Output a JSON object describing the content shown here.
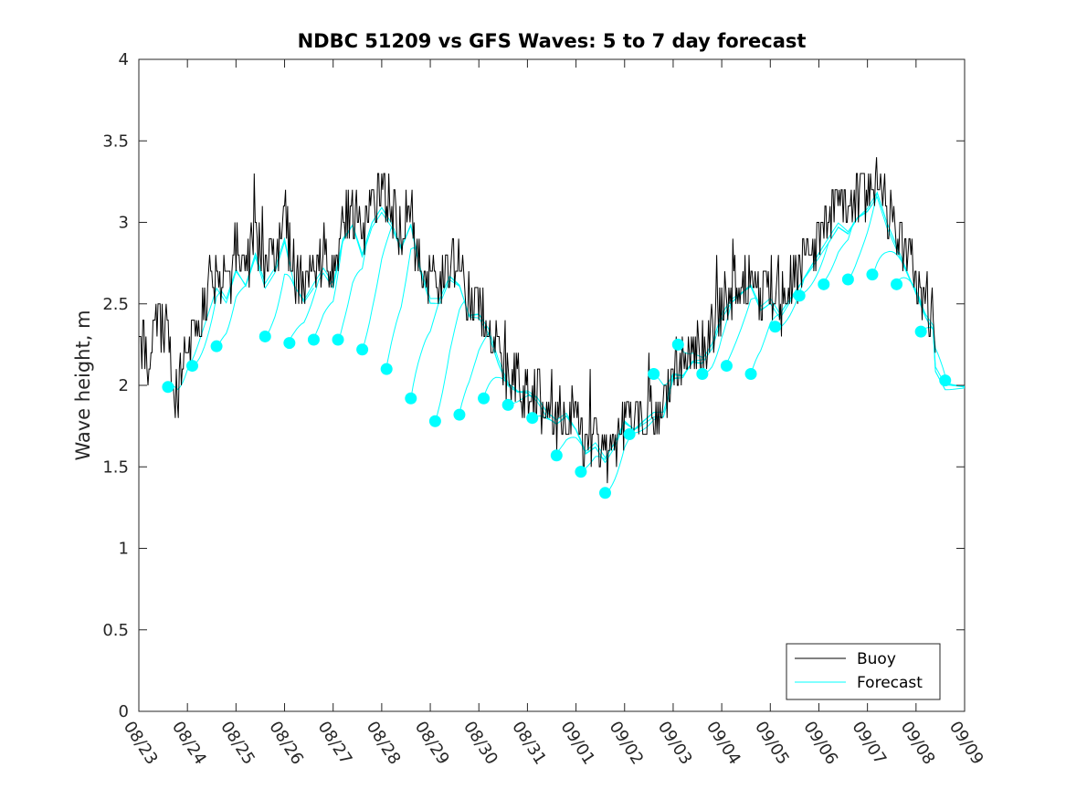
{
  "chart_data": {
    "type": "line",
    "title": "NDBC 51209 vs GFS Waves: 5 to 7 day forecast",
    "xlabel": "",
    "ylabel": "Wave height, m",
    "xlim": [
      0,
      17
    ],
    "ylim": [
      0,
      4
    ],
    "x_tick_labels": [
      "08/23",
      "08/24",
      "08/25",
      "08/26",
      "08/27",
      "08/28",
      "08/29",
      "08/30",
      "08/31",
      "09/01",
      "09/02",
      "09/03",
      "09/04",
      "09/05",
      "09/06",
      "09/07",
      "09/08",
      "09/09"
    ],
    "y_ticks": [
      0,
      0.5,
      1,
      1.5,
      2,
      2.5,
      3,
      3.5,
      4
    ],
    "y_tick_labels": [
      "0",
      "0.5",
      "1",
      "1.5",
      "2",
      "2.5",
      "3",
      "3.5",
      "4"
    ],
    "legend": {
      "position": "bottom-right",
      "entries": [
        "Buoy",
        "Forecast"
      ]
    },
    "colors": {
      "buoy": "#000000",
      "forecast": "#00ffff",
      "axes": "#262626"
    },
    "buoy_anchors": {
      "x": [
        0,
        0.2,
        0.4,
        0.6,
        0.7,
        0.8,
        1.0,
        1.2,
        1.4,
        1.6,
        1.8,
        2.0,
        2.2,
        2.4,
        2.6,
        2.8,
        3.0,
        3.2,
        3.4,
        3.6,
        3.8,
        4.0,
        4.2,
        4.4,
        4.6,
        4.8,
        5.0,
        5.2,
        5.4,
        5.6,
        5.8,
        6.0,
        6.2,
        6.4,
        6.6,
        6.8,
        7.0,
        7.2,
        7.4,
        7.6,
        7.8,
        8.0,
        8.2,
        8.4,
        8.6,
        8.8,
        9.0,
        9.2,
        9.4,
        9.6,
        9.8,
        10.0,
        10.2,
        10.4,
        10.6,
        10.8,
        11.0,
        11.2,
        11.4,
        11.6,
        11.8,
        12.0,
        12.2,
        12.4,
        12.6,
        12.8,
        13.0,
        13.2,
        13.4,
        13.6,
        13.8,
        14.0,
        14.2,
        14.4,
        14.6,
        14.8,
        15.0,
        15.2,
        15.4,
        15.6,
        15.8,
        16.0,
        16.2,
        16.4
      ],
      "y": [
        2.3,
        2.2,
        2.4,
        2.3,
        2.0,
        1.95,
        2.2,
        2.3,
        2.5,
        2.7,
        2.6,
        2.8,
        2.7,
        2.9,
        2.7,
        2.8,
        3.0,
        2.7,
        2.6,
        2.7,
        2.8,
        2.7,
        3.0,
        3.1,
        2.9,
        3.1,
        3.2,
        3.1,
        2.95,
        3.1,
        2.8,
        2.6,
        2.6,
        2.75,
        2.7,
        2.5,
        2.5,
        2.4,
        2.2,
        2.05,
        2.0,
        2.0,
        1.95,
        1.85,
        1.8,
        1.85,
        1.75,
        1.6,
        1.65,
        1.55,
        1.65,
        1.8,
        1.75,
        1.8,
        1.85,
        1.85,
        2.1,
        2.1,
        2.2,
        2.2,
        2.3,
        2.5,
        2.6,
        2.65,
        2.7,
        2.55,
        2.6,
        2.5,
        2.6,
        2.7,
        2.8,
        2.9,
        3.0,
        3.1,
        3.05,
        3.15,
        3.2,
        3.3,
        3.1,
        2.95,
        2.8,
        2.65,
        2.5,
        2.4
      ]
    },
    "forecast_markers": {
      "x": [
        0.6,
        1.1,
        1.6,
        2.6,
        3.1,
        3.6,
        4.1,
        4.6,
        5.1,
        5.6,
        6.1,
        6.6,
        7.1,
        7.6,
        8.1,
        8.6,
        9.1,
        9.6,
        10.1,
        10.6,
        11.1,
        11.6,
        12.1,
        12.6,
        13.1,
        13.6,
        14.1,
        14.6,
        15.1,
        15.6,
        16.1,
        16.6
      ],
      "y": [
        1.99,
        2.12,
        2.24,
        2.3,
        2.26,
        2.28,
        2.28,
        2.22,
        2.1,
        1.92,
        1.78,
        1.82,
        1.92,
        1.88,
        1.8,
        1.57,
        1.47,
        1.34,
        1.7,
        2.07,
        2.25,
        2.07,
        2.12,
        2.07,
        2.36,
        2.55,
        2.62,
        2.65,
        2.68,
        2.62,
        2.33,
        2.03
      ]
    }
  }
}
